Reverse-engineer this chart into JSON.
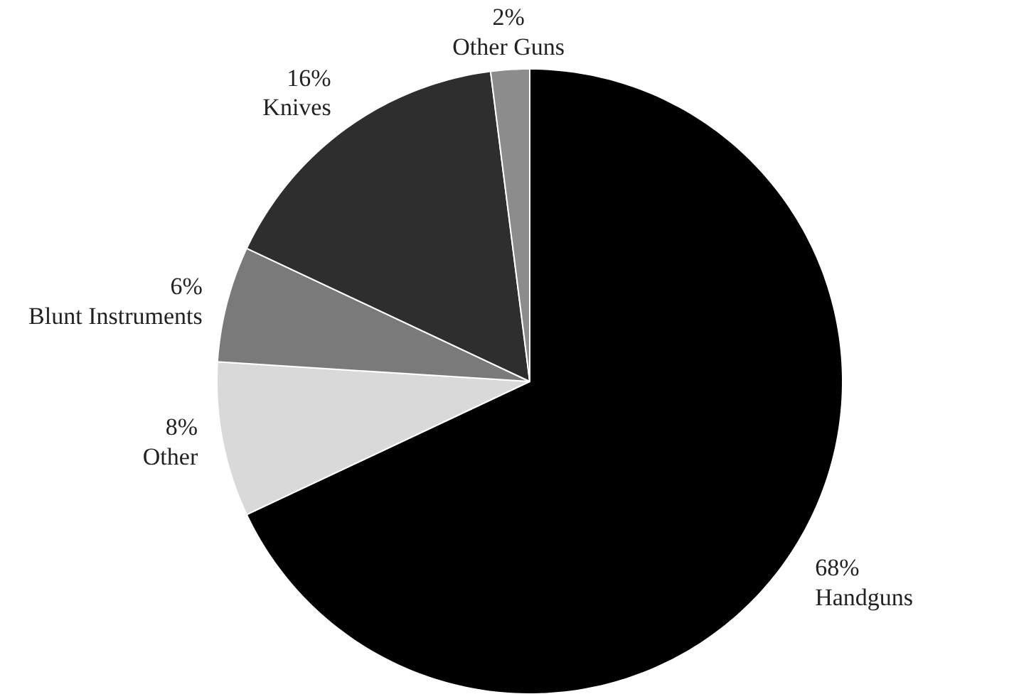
{
  "chart_data": {
    "type": "pie",
    "categories": [
      "Handguns",
      "Other",
      "Blunt Instruments",
      "Knives",
      "Other Guns"
    ],
    "values": [
      68,
      8,
      6,
      16,
      2
    ],
    "colors": [
      "#000000",
      "#d9d9d9",
      "#7a7a7a",
      "#2e2e2e",
      "#8c8c8c"
    ],
    "value_labels": [
      "68%",
      "8%",
      "6%",
      "16%",
      "2%"
    ]
  }
}
